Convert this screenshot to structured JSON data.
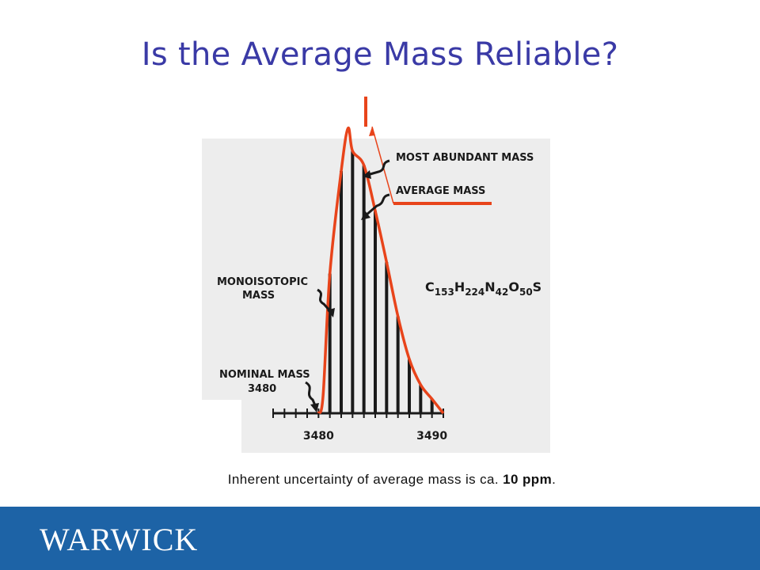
{
  "slide": {
    "title": "Is the Average Mass Reliable?",
    "caption_text": "Inherent uncertainty of average mass is ca.",
    "caption_value": "10 ppm",
    "caption_end": "."
  },
  "figure": {
    "labels": {
      "most_abundant": "MOST ABUNDANT MASS",
      "average": "AVERAGE MASS",
      "monoisotopic_line1": "MONOISOTOPIC",
      "monoisotopic_line2": "MASS",
      "nominal_line1": "NOMINAL MASS",
      "nominal_line2": "3480"
    },
    "formula": {
      "C": "C",
      "C_n": "153",
      "H": "H",
      "H_n": "224",
      "N": "N",
      "N_n": "42",
      "O": "O",
      "O_n": "50",
      "S": "S"
    }
  },
  "chart_data": {
    "type": "bar",
    "x": [
      3480,
      3481,
      3482,
      3483,
      3484,
      3485,
      3486,
      3487,
      3488,
      3489,
      3490
    ],
    "values": [
      0,
      49,
      85,
      92,
      87,
      71,
      53,
      34,
      19,
      10,
      5
    ],
    "xticks": [
      "3480",
      "3490"
    ],
    "xlim": [
      3476,
      3491
    ],
    "ylim": [
      0,
      100
    ],
    "envelope": true
  },
  "footer": {
    "logo": "WARWICK"
  },
  "colors": {
    "title": "#3a3aa6",
    "envelope": "#e8441b",
    "footer": "#1d63a6"
  }
}
